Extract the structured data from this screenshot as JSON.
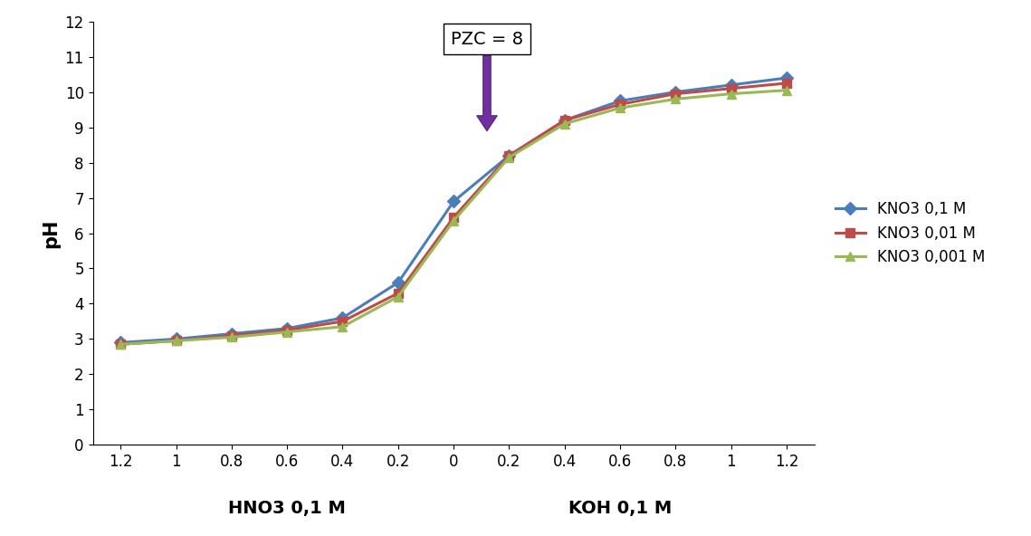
{
  "chart_data": {
    "type": "line",
    "y_label": "pH",
    "x_axis_labels": [
      "HNO3 0,1 M",
      "KOH 0,1 M"
    ],
    "annotation": "PZC = 8",
    "categories": [
      "1.2",
      "1",
      "0.8",
      "0.6",
      "0.4",
      "0.2",
      "0",
      "0.2",
      "0.4",
      "0.6",
      "0.8",
      "1",
      "1.2"
    ],
    "series": [
      {
        "name": "KNO3 0,1 M",
        "color": "#4a7ebb",
        "marker": "diamond",
        "values": [
          2.9,
          3.0,
          3.15,
          3.3,
          3.6,
          4.6,
          6.9,
          8.2,
          9.2,
          9.75,
          10.0,
          10.2,
          10.4
        ]
      },
      {
        "name": "KNO3 0,01 M",
        "color": "#be4b48",
        "marker": "square",
        "values": [
          2.85,
          2.95,
          3.1,
          3.25,
          3.5,
          4.3,
          6.45,
          8.2,
          9.2,
          9.65,
          9.95,
          10.1,
          10.25
        ]
      },
      {
        "name": "KNO3 0,001 M",
        "color": "#98b954",
        "marker": "triangle",
        "values": [
          2.85,
          2.95,
          3.05,
          3.2,
          3.35,
          4.2,
          6.35,
          8.15,
          9.1,
          9.55,
          9.8,
          9.95,
          10.05
        ]
      }
    ],
    "ylim": [
      0,
      12
    ],
    "yticks": [
      0,
      1,
      2,
      3,
      4,
      5,
      6,
      7,
      8,
      9,
      10,
      11,
      12
    ],
    "grid": false,
    "legend": "right"
  }
}
